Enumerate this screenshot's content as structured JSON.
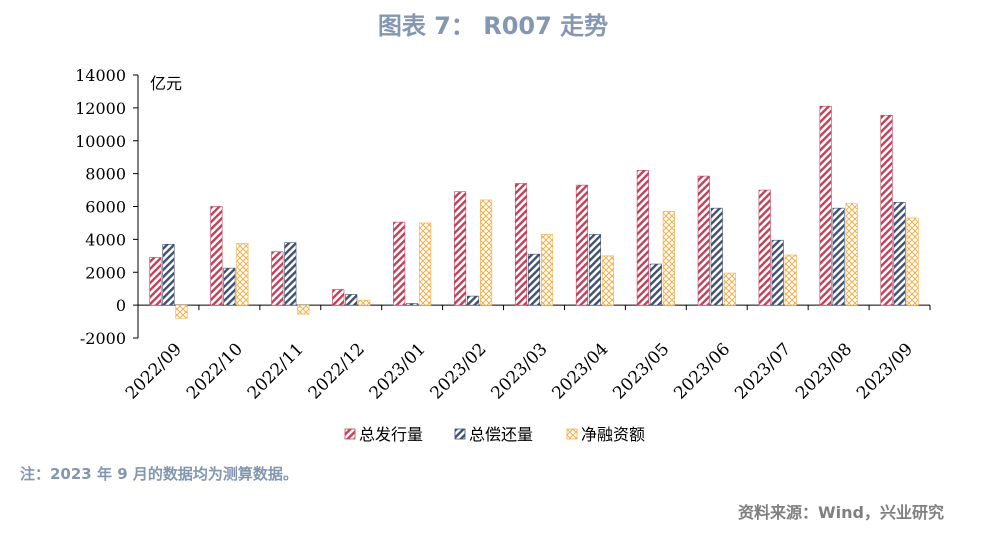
{
  "title": "图表 7：  R007 走势",
  "note": "注：2023 年 9 月的数据均为测算数据。",
  "source": "资料来源：Wind，兴业研究",
  "colors": {
    "series1": "#c0405a",
    "series2": "#3f5070",
    "series3": "#f0b04a",
    "title": "#8497b0"
  },
  "chart_data": {
    "type": "bar",
    "unit_label": "亿元",
    "categories": [
      "2022/09",
      "2022/10",
      "2022/11",
      "2022/12",
      "2023/01",
      "2023/02",
      "2023/03",
      "2023/04",
      "2023/05",
      "2023/06",
      "2023/07",
      "2023/08",
      "2023/09"
    ],
    "series": [
      {
        "name": "总发行量",
        "values": [
          2900,
          6000,
          3250,
          950,
          5050,
          6900,
          7400,
          7300,
          8200,
          7850,
          7000,
          12100,
          11550
        ]
      },
      {
        "name": "总偿还量",
        "values": [
          3700,
          2250,
          3800,
          650,
          100,
          550,
          3100,
          4300,
          2500,
          5900,
          3950,
          5900,
          6250
        ]
      },
      {
        "name": "净融资额",
        "values": [
          -800,
          3750,
          -550,
          300,
          5000,
          6400,
          4300,
          3000,
          5700,
          1950,
          3050,
          6200,
          5300
        ]
      }
    ],
    "ylim": [
      -2000,
      14000
    ],
    "yticks": [
      -2000,
      0,
      2000,
      4000,
      6000,
      8000,
      10000,
      12000,
      14000
    ],
    "ytick_labels": [
      "-2000",
      "0",
      "2000",
      "4000",
      "6000",
      "8000",
      "10000",
      "12000",
      "14000"
    ],
    "legend_position": "bottom"
  }
}
